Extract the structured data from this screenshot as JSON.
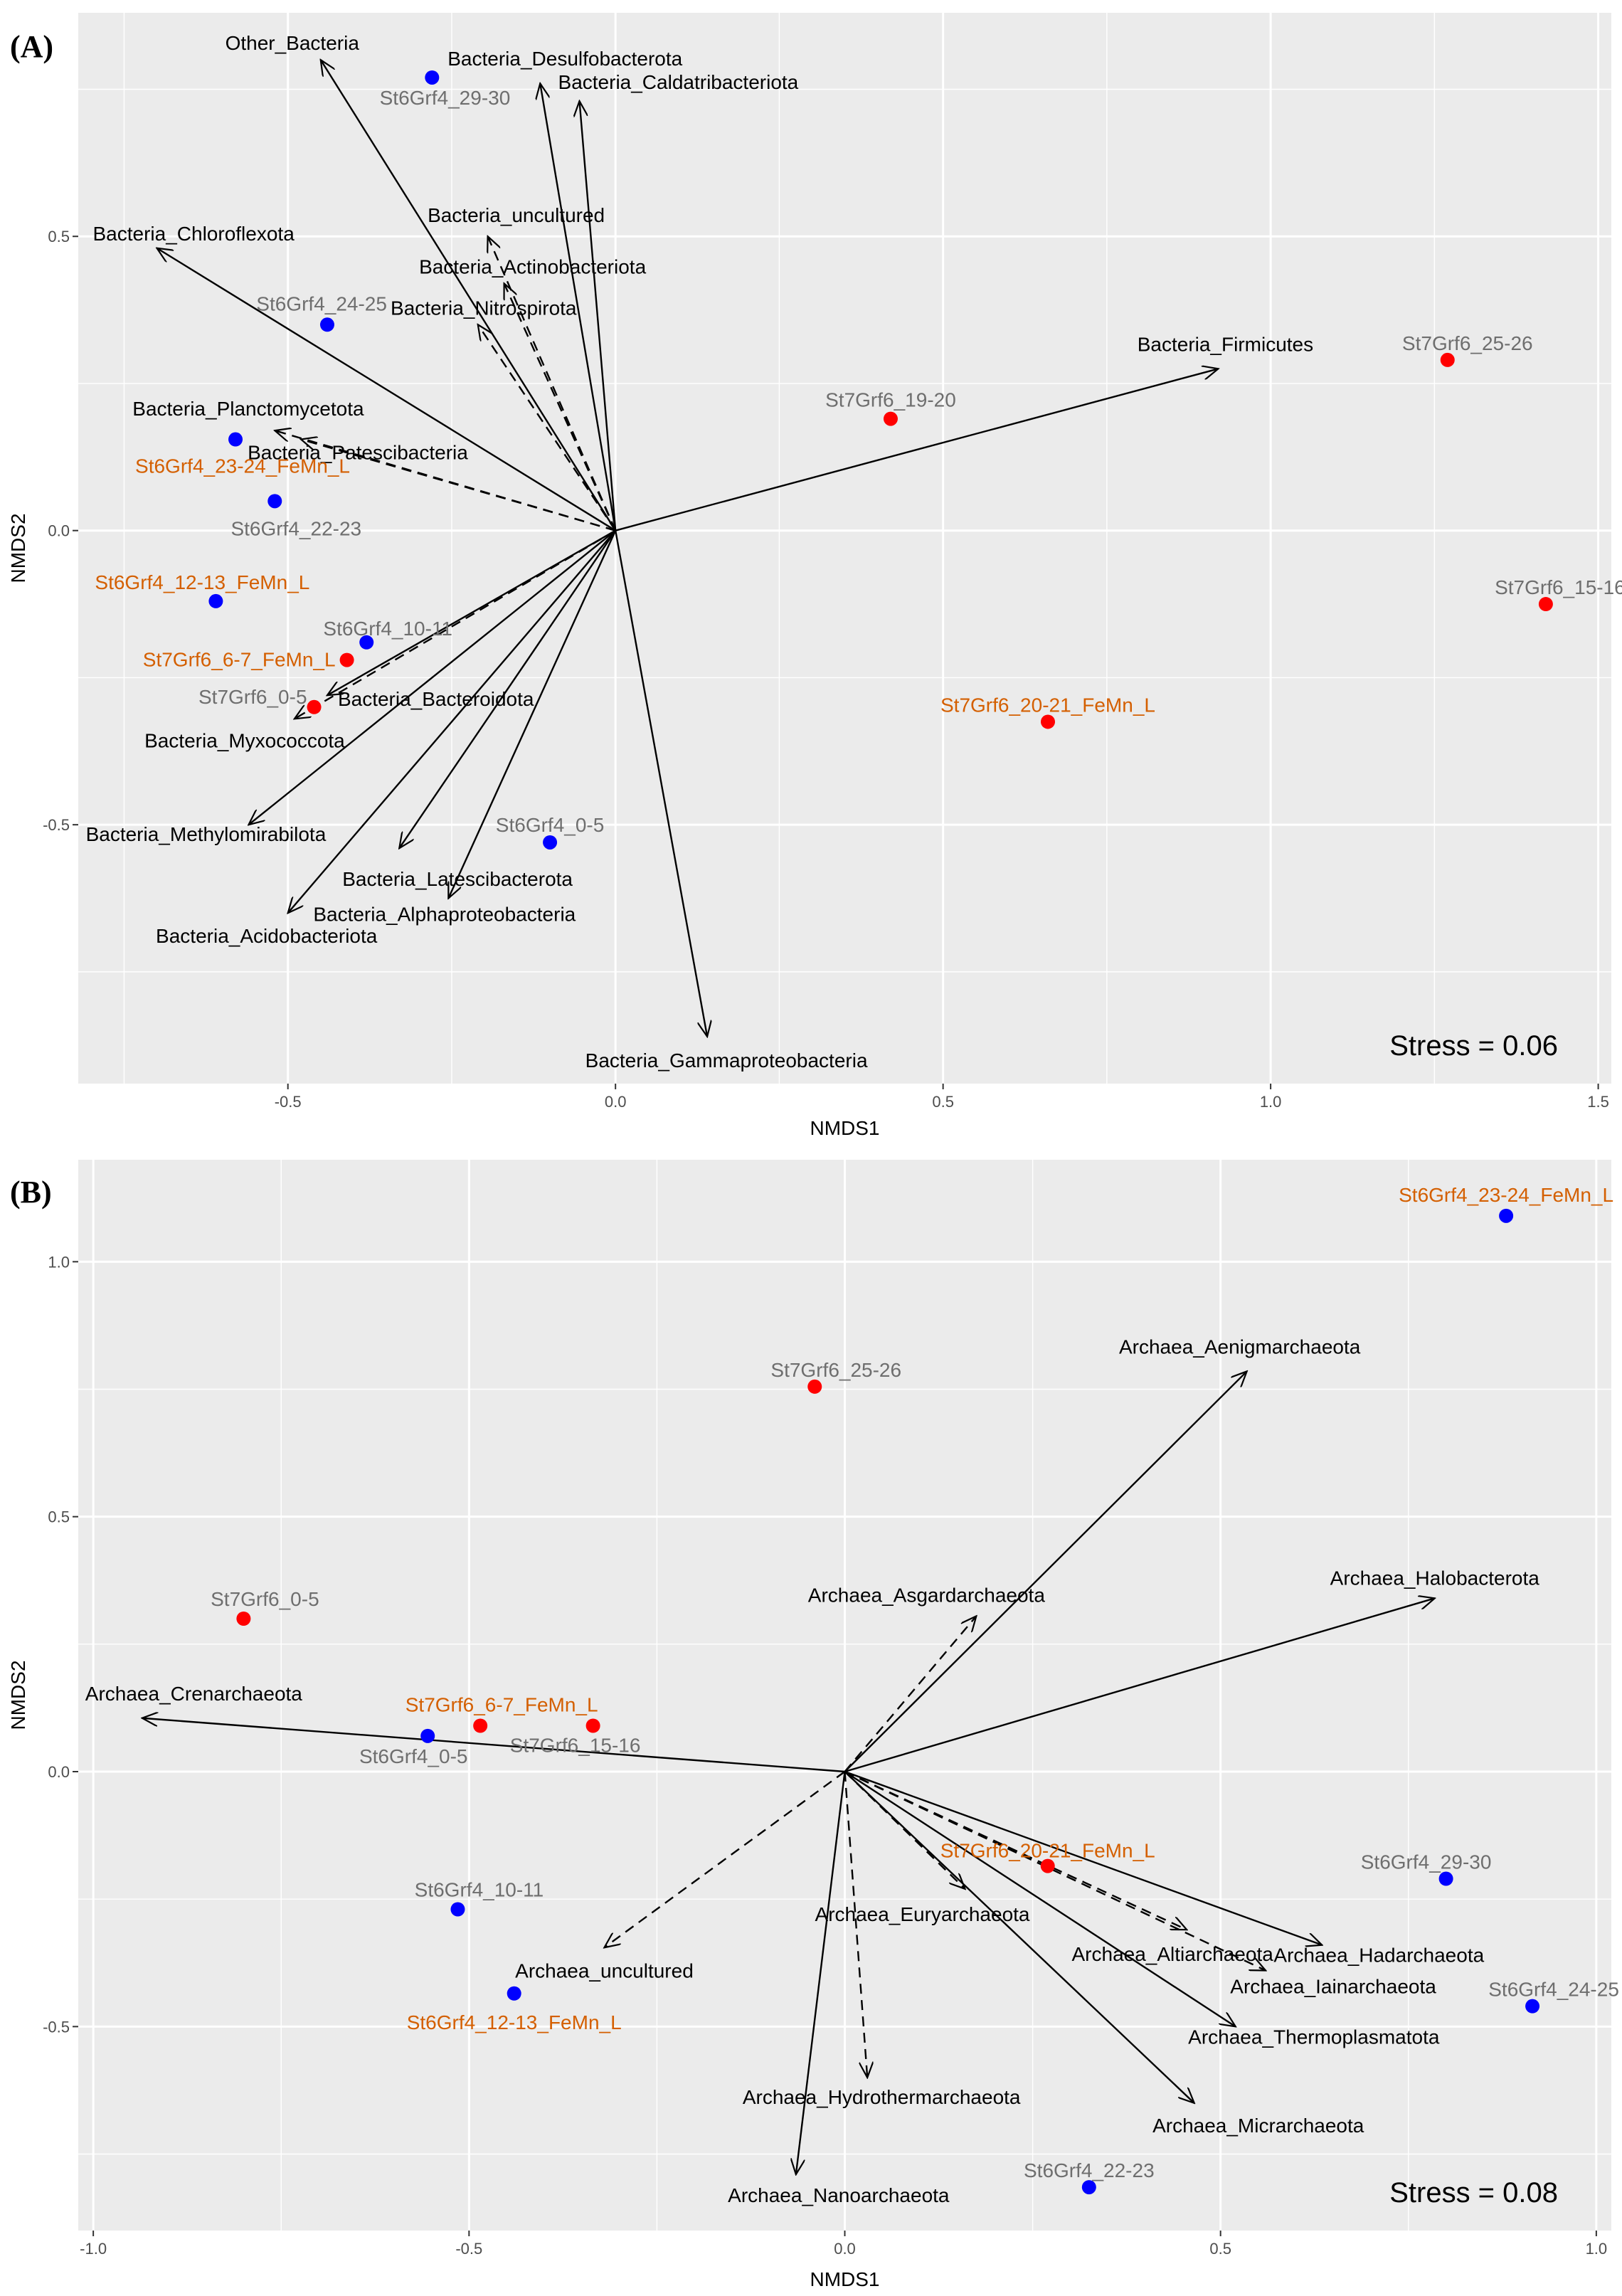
{
  "colors": {
    "panel_background": "#ebebeb",
    "grid": "#ffffff",
    "site_st6": "#0000ff",
    "site_st7": "#ff0000",
    "label_gray": "#6e6e6e",
    "label_femn": "#d45f00",
    "arrow": "#000000"
  },
  "chart_data": [
    {
      "type": "scatter",
      "panel_label": "(A)",
      "xlabel": "NMDS1",
      "ylabel": "NMDS2",
      "xlim": [
        -0.82,
        1.52
      ],
      "ylim": [
        -0.94,
        0.88
      ],
      "xticks": [
        -0.5,
        0.0,
        0.5,
        1.0,
        1.5
      ],
      "xtick_labels": [
        "-0.5",
        "0.0",
        "0.5",
        "1.0",
        "1.5"
      ],
      "yticks": [
        -0.5,
        0.0,
        0.5
      ],
      "ytick_labels": [
        "-0.5",
        "0.0",
        "0.5"
      ],
      "stress": "Stress = 0.06",
      "points": [
        {
          "label": "St6Grf4_29-30",
          "x": -0.28,
          "y": 0.77,
          "site": "St6",
          "femn": false
        },
        {
          "label": "St6Grf4_24-25",
          "x": -0.44,
          "y": 0.35,
          "site": "St6",
          "femn": false
        },
        {
          "label": "St6Grf4_23-24_FeMn_L",
          "x": -0.58,
          "y": 0.155,
          "site": "St6",
          "femn": true
        },
        {
          "label": "St6Grf4_22-23",
          "x": -0.52,
          "y": 0.05,
          "site": "St6",
          "femn": false
        },
        {
          "label": "St6Grf4_12-13_FeMn_L",
          "x": -0.61,
          "y": -0.12,
          "site": "St6",
          "femn": true
        },
        {
          "label": "St6Grf4_10-11",
          "x": -0.38,
          "y": -0.19,
          "site": "St6",
          "femn": false
        },
        {
          "label": "St6Grf4_0-5",
          "x": -0.1,
          "y": -0.53,
          "site": "St6",
          "femn": false
        },
        {
          "label": "St7Grf6_6-7_FeMn_L",
          "x": -0.41,
          "y": -0.22,
          "site": "St7",
          "femn": true
        },
        {
          "label": "St7Grf6_0-5",
          "x": -0.46,
          "y": -0.3,
          "site": "St7",
          "femn": false
        },
        {
          "label": "St7Grf6_19-20",
          "x": 0.42,
          "y": 0.19,
          "site": "St7",
          "femn": false
        },
        {
          "label": "St7Grf6_20-21_FeMn_L",
          "x": 0.66,
          "y": -0.325,
          "site": "St7",
          "femn": true
        },
        {
          "label": "St7Grf6_25-26",
          "x": 1.27,
          "y": 0.29,
          "site": "St7",
          "femn": false
        },
        {
          "label": "St7Grf6_15-16",
          "x": 1.42,
          "y": -0.125,
          "site": "St7",
          "femn": false
        }
      ],
      "vectors": [
        {
          "label": "Other_Bacteria",
          "x": -0.45,
          "y": 0.8,
          "significant": true
        },
        {
          "label": "Bacteria_Desulfobacterota",
          "x": -0.115,
          "y": 0.76,
          "significant": true
        },
        {
          "label": "Bacteria_Caldatribacteriota",
          "x": -0.055,
          "y": 0.73,
          "significant": true
        },
        {
          "label": "Bacteria_uncultured",
          "x": -0.195,
          "y": 0.5,
          "significant": false
        },
        {
          "label": "Bacteria_Actinobacteriota",
          "x": -0.17,
          "y": 0.42,
          "significant": false
        },
        {
          "label": "Bacteria_Nitrospirota",
          "x": -0.21,
          "y": 0.35,
          "significant": false
        },
        {
          "label": "Bacteria_Chloroflexota",
          "x": -0.7,
          "y": 0.48,
          "significant": true
        },
        {
          "label": "Bacteria_Planctomycetota",
          "x": -0.52,
          "y": 0.17,
          "significant": false
        },
        {
          "label": "Bacteria_Patescibacteria",
          "x": -0.48,
          "y": 0.155,
          "significant": false
        },
        {
          "label": "Bacteria_Firmicutes",
          "x": 0.92,
          "y": 0.275,
          "significant": true
        },
        {
          "label": "Bacteria_Myxococcota",
          "x": -0.49,
          "y": -0.32,
          "significant": false
        },
        {
          "label": "Bacteria_Bacteroidota",
          "x": -0.44,
          "y": -0.28,
          "significant": true
        },
        {
          "label": "Bacteria_Methylomirabilota",
          "x": -0.56,
          "y": -0.5,
          "significant": true
        },
        {
          "label": "Bacteria_Latescibacterota",
          "x": -0.33,
          "y": -0.54,
          "significant": true
        },
        {
          "label": "Bacteria_Alphaproteobacteria",
          "x": -0.255,
          "y": -0.625,
          "significant": true
        },
        {
          "label": "Bacteria_Acidobacteriota",
          "x": -0.5,
          "y": -0.65,
          "significant": true
        },
        {
          "label": "Bacteria_Gammaproteobacteria",
          "x": 0.14,
          "y": -0.86,
          "significant": true
        }
      ]
    },
    {
      "type": "scatter",
      "panel_label": "(B)",
      "xlabel": "NMDS1",
      "ylabel": "NMDS2",
      "xlim": [
        -1.02,
        1.02
      ],
      "ylim": [
        -0.9,
        1.2
      ],
      "xticks": [
        -1.0,
        -0.5,
        0.0,
        0.5,
        1.0
      ],
      "xtick_labels": [
        "-1.0",
        "-0.5",
        "0.0",
        "0.5",
        "1.0"
      ],
      "yticks": [
        -0.5,
        0.0,
        0.5,
        1.0
      ],
      "ytick_labels": [
        "-0.5",
        "0.0",
        "0.5",
        "1.0"
      ],
      "stress": "Stress = 0.08",
      "points": [
        {
          "label": "St6Grf4_23-24_FeMn_L",
          "x": 0.88,
          "y": 1.09,
          "site": "St6",
          "femn": true
        },
        {
          "label": "St6Grf4_29-30",
          "x": 0.8,
          "y": -0.21,
          "site": "St6",
          "femn": false
        },
        {
          "label": "St6Grf4_24-25",
          "x": 0.915,
          "y": -0.46,
          "site": "St6",
          "femn": false
        },
        {
          "label": "St6Grf4_22-23",
          "x": 0.325,
          "y": -0.815,
          "site": "St6",
          "femn": false
        },
        {
          "label": "St6Grf4_0-5",
          "x": -0.555,
          "y": 0.07,
          "site": "St6",
          "femn": false
        },
        {
          "label": "St6Grf4_10-11",
          "x": -0.515,
          "y": -0.27,
          "site": "St6",
          "femn": false
        },
        {
          "label": "St6Grf4_12-13_FeMn_L",
          "x": -0.44,
          "y": -0.435,
          "site": "St6",
          "femn": true
        },
        {
          "label": "St7Grf6_25-26",
          "x": -0.04,
          "y": 0.755,
          "site": "St7",
          "femn": false
        },
        {
          "label": "St7Grf6_0-5",
          "x": -0.8,
          "y": 0.3,
          "site": "St7",
          "femn": false
        },
        {
          "label": "St7Grf6_6-7_FeMn_L",
          "x": -0.485,
          "y": 0.09,
          "site": "St7",
          "femn": true
        },
        {
          "label": "St7Grf6_15-16",
          "x": -0.335,
          "y": 0.09,
          "site": "St7",
          "femn": false
        },
        {
          "label": "St7Grf6_20-21_FeMn_L",
          "x": 0.27,
          "y": -0.185,
          "site": "St7",
          "femn": true
        }
      ],
      "vectors": [
        {
          "label": "Archaea_Aenigmarchaeota",
          "x": 0.535,
          "y": 0.785,
          "significant": true
        },
        {
          "label": "Archaea_Halobacterota",
          "x": 0.785,
          "y": 0.34,
          "significant": true
        },
        {
          "label": "Archaea_Asgardarchaeota",
          "x": 0.175,
          "y": 0.305,
          "significant": false
        },
        {
          "label": "Archaea_Crenarchaeota",
          "x": -0.935,
          "y": 0.105,
          "significant": true
        },
        {
          "label": "Archaea_uncultured",
          "x": -0.32,
          "y": -0.345,
          "significant": false
        },
        {
          "label": "Archaea_Euryarchaeota",
          "x": 0.16,
          "y": -0.23,
          "significant": false
        },
        {
          "label": "Archaea_Altiarchaeota",
          "x": 0.455,
          "y": -0.31,
          "significant": false
        },
        {
          "label": "Archaea_Hadarchaeota",
          "x": 0.635,
          "y": -0.34,
          "significant": true
        },
        {
          "label": "Archaea_Iainarchaeota",
          "x": 0.56,
          "y": -0.39,
          "significant": false
        },
        {
          "label": "Archaea_Thermoplasmatota",
          "x": 0.52,
          "y": -0.5,
          "significant": true
        },
        {
          "label": "Archaea_Hydrothermarchaeota",
          "x": 0.03,
          "y": -0.6,
          "significant": false
        },
        {
          "label": "Archaea_Micrarchaeota",
          "x": 0.465,
          "y": -0.65,
          "significant": true
        },
        {
          "label": "Archaea_Nanoarchaeota",
          "x": -0.065,
          "y": -0.79,
          "significant": true
        }
      ]
    }
  ]
}
